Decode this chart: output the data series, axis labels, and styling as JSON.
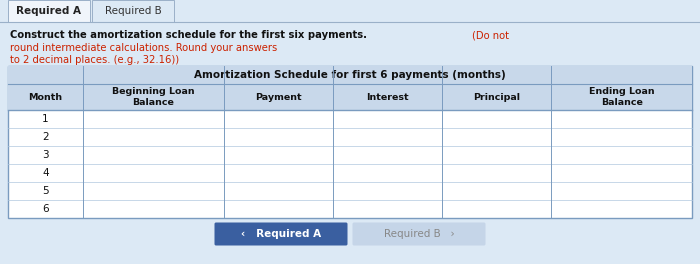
{
  "tab1_text": "Required A",
  "tab2_text": "Required B",
  "instruction_bold": "Construct the amortization schedule for the first six payments.",
  "instruction_red": "(Do not round intermediate calculations. Round your answers\nto 2 decimal places. (e.g., 32.16))",
  "table_title": "Amortization Schedule for first 6 payments (months)",
  "col_headers": [
    "Month",
    "Beginning Loan\nBalance",
    "Payment",
    "Interest",
    "Principal",
    "Ending Loan\nBalance"
  ],
  "months": [
    1,
    2,
    3,
    4,
    5,
    6
  ],
  "btn1_text": "‹   Required A",
  "btn2_text": "Required B   ›",
  "bg_color": "#dce9f5",
  "table_bg": "#ffffff",
  "header_bg": "#c8d8ea",
  "tab_active_bg": "#f0f5fb",
  "tab_inactive_bg": "#dce9f5",
  "btn1_bg": "#3a5fa0",
  "btn2_bg": "#c5d5e8",
  "btn1_text_color": "#ffffff",
  "btn2_text_color": "#888888",
  "border_color": "#7a9bbf",
  "cell_line_color": "#b0c8de",
  "col_widths_rel": [
    0.72,
    1.35,
    1.05,
    1.05,
    1.05,
    1.35
  ],
  "tab_border_color": "#9ab0c8"
}
